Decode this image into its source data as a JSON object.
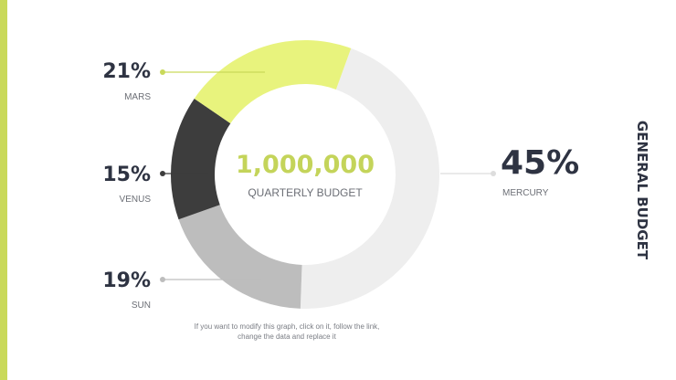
{
  "slide": {
    "vertical_title": "GENERAL BUDGET",
    "center_value": "1,000,000",
    "center_label": "QUARTERLY BUDGET",
    "note": "If you want to modify this graph, click on it, follow the link, change the data and replace it"
  },
  "chart_data": {
    "type": "pie",
    "variant": "donut",
    "title": "",
    "slices": [
      {
        "name": "MERCURY",
        "value": 45,
        "label": "45%",
        "color": "#eeeeee"
      },
      {
        "name": "SUN",
        "value": 19,
        "label": "19%",
        "color": "#bdbdbd"
      },
      {
        "name": "VENUS",
        "value": 15,
        "label": "15%",
        "color": "#3d3d3d"
      },
      {
        "name": "MARS",
        "value": 21,
        "label": "21%",
        "color": "#e8f37d"
      }
    ],
    "start_angle_deg": 20,
    "direction": "clockwise",
    "legend": "callouts"
  },
  "colors": {
    "accent": "#c9d95a",
    "text_dark": "#2e3342",
    "center_value": "#c4d45a"
  }
}
